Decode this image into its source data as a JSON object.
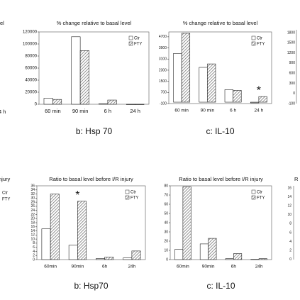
{
  "chart_data": [
    {
      "type": "bar",
      "title": "% change relative to basal level",
      "caption": "b: Hsp 70",
      "categories": [
        "60 min",
        "90 min",
        "6 h",
        "24 h"
      ],
      "series": [
        {
          "name": "Ctr",
          "color": "#ffffff",
          "values": [
            10000,
            112000,
            1000,
            0
          ]
        },
        {
          "name": "FTY",
          "color": "#999999",
          "values": [
            8000,
            89000,
            7000,
            0
          ]
        }
      ],
      "ylim": [
        0,
        120000
      ],
      "yticks": [
        0,
        20000,
        40000,
        60000,
        80000,
        100000,
        120000
      ]
    },
    {
      "type": "bar",
      "title": "% change relative to basal level",
      "caption": "c: IL-10",
      "categories": [
        "60 min",
        "90 min",
        "6 h",
        "24 h"
      ],
      "series": [
        {
          "name": "Ctr",
          "color": "#ffffff",
          "values": [
            3500,
            2500,
            900,
            -50
          ]
        },
        {
          "name": "FTY",
          "color": "#999999",
          "values": [
            4950,
            2750,
            850,
            400
          ]
        }
      ],
      "ylim": [
        -100,
        5050
      ],
      "yticks": [
        -100,
        700,
        1500,
        2300,
        3100,
        3900,
        4700
      ],
      "annotation": "*"
    },
    {
      "type": "bar",
      "title": "Ratio to basal level before I/R injury",
      "caption": "b: Hsp70",
      "categories": [
        "60min",
        "90min",
        "6h",
        "24h"
      ],
      "series": [
        {
          "name": "Ctr",
          "color": "#ffffff",
          "values": [
            15,
            7,
            0.5,
            0.8
          ]
        },
        {
          "name": "FTY",
          "color": "#999999",
          "values": [
            32,
            28.5,
            1.2,
            4.2
          ]
        }
      ],
      "ylim": [
        0,
        36
      ],
      "yticks": [
        0,
        2,
        4,
        6,
        8,
        10,
        12,
        14,
        16,
        18,
        20,
        22,
        24,
        26,
        28,
        30,
        32,
        34,
        36
      ],
      "annotation": "*"
    },
    {
      "type": "bar",
      "title": "Ratio to basal level before I/R injury",
      "caption": "c: IL-10",
      "categories": [
        "60min",
        "90min",
        "6h",
        "24h"
      ],
      "series": [
        {
          "name": "Ctr",
          "color": "#ffffff",
          "values": [
            11,
            17,
            1,
            0.3
          ]
        },
        {
          "name": "FTY",
          "color": "#999999",
          "values": [
            79,
            23,
            6.5,
            1
          ]
        }
      ],
      "ylim": [
        0,
        80
      ],
      "yticks": [
        0,
        10,
        20,
        30,
        40,
        50,
        60,
        70,
        80
      ]
    }
  ],
  "fragments": {
    "left_top": [
      "el",
      "4 h"
    ],
    "left_bottom": [
      "njury",
      "Ctr",
      "FTY"
    ],
    "right_top": [
      "1800",
      "1500",
      "1200",
      "900",
      "600",
      "300",
      "0",
      "-100"
    ],
    "right_bottom": [
      "R",
      "16",
      "14",
      "12",
      "10",
      "8",
      "6",
      "4",
      "2",
      "0"
    ]
  }
}
